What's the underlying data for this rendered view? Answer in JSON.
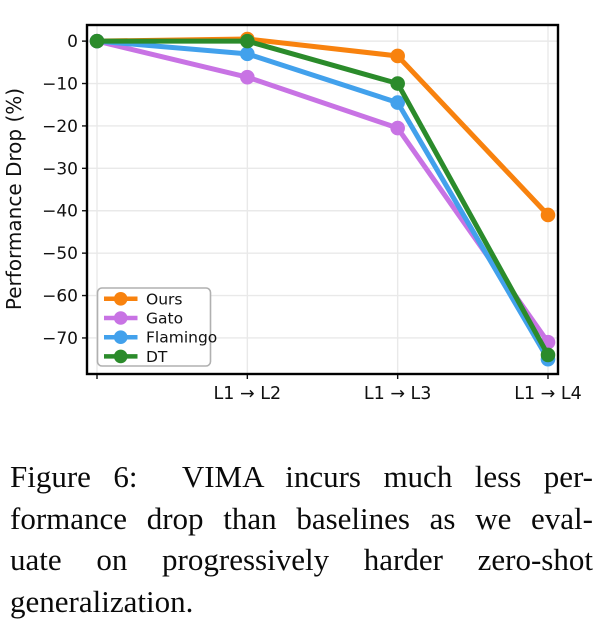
{
  "page": {
    "background": "#ffffff"
  },
  "figure_caption": {
    "lines": [
      "Figure 6:  VIMA incurs much less per-",
      "formance drop than baselines as we eval-",
      "uate on progressively harder zero-shot",
      "generalization."
    ]
  },
  "chart_data": {
    "type": "line",
    "title": "",
    "xlabel": "",
    "ylabel": "Performance Drop (%)",
    "categories": [
      "",
      "L1 → L2",
      "L1 → L3",
      "L1 → L4"
    ],
    "yticks": [
      0,
      -10,
      -20,
      -30,
      -40,
      -50,
      -60,
      -70
    ],
    "ylim": [
      -78.5,
      3.8
    ],
    "grid": true,
    "grid_color": "#e9e9e9",
    "spine_color": "#000000",
    "text_color": "#111111",
    "legend_position": "lower-left",
    "series": [
      {
        "name": "Ours",
        "color": "#F8820E",
        "values": [
          0,
          0.5,
          -3.5,
          -41
        ]
      },
      {
        "name": "Gato",
        "color": "#C873E4",
        "values": [
          0,
          -8.5,
          -20.5,
          -71
        ]
      },
      {
        "name": "Flamingo",
        "color": "#42A1EC",
        "values": [
          0,
          -3,
          -14.5,
          -75
        ]
      },
      {
        "name": "DT",
        "color": "#2B8B2B",
        "values": [
          0,
          0,
          -10,
          -74
        ]
      }
    ]
  }
}
